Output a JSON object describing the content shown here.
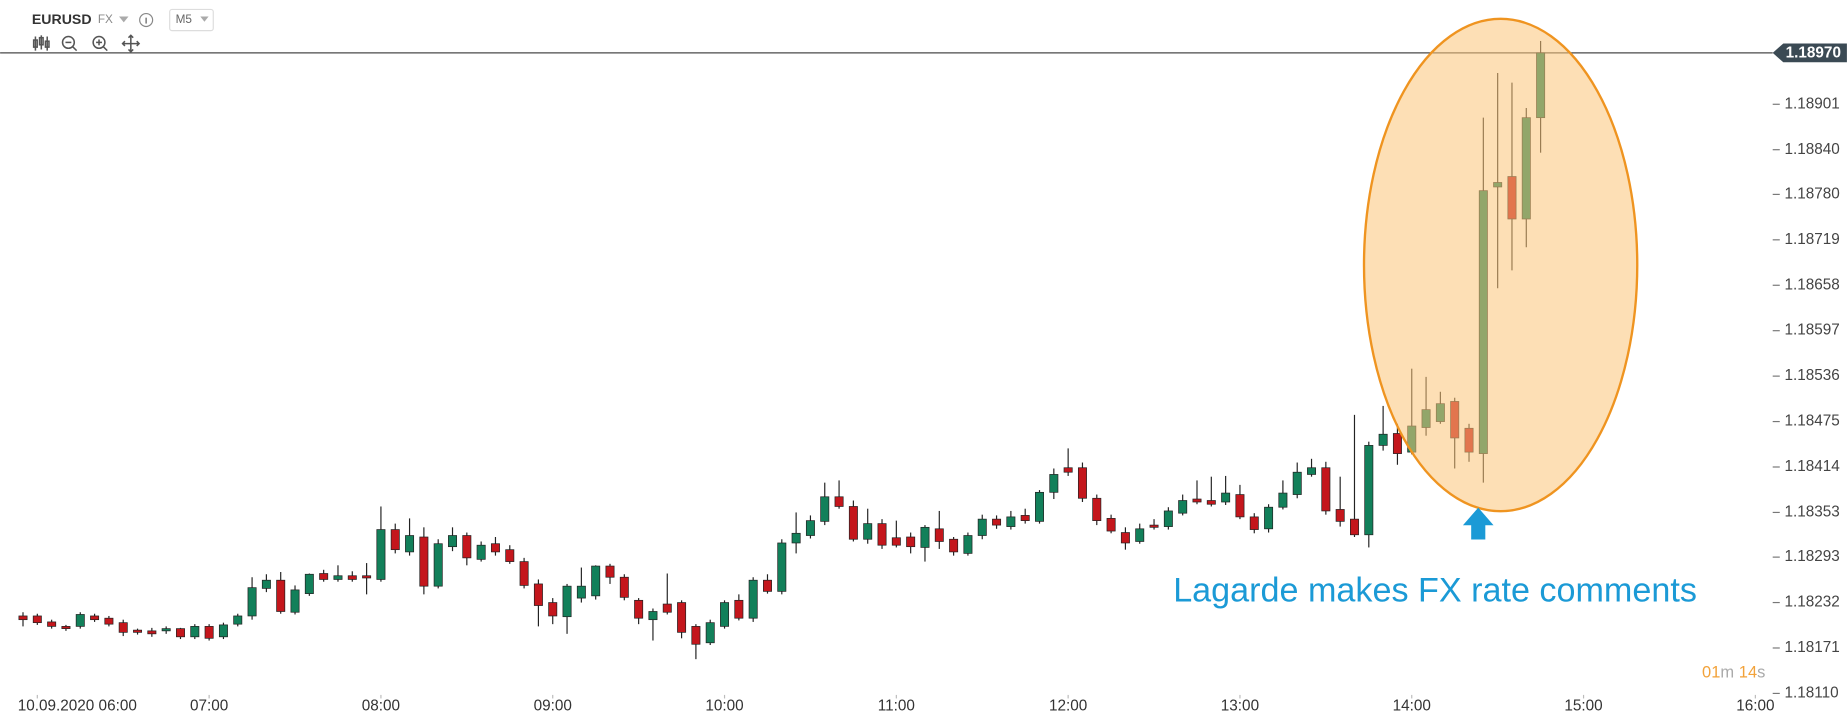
{
  "header": {
    "symbol": "EURUSD",
    "market": "FX",
    "timeframe": "M5"
  },
  "chart_data": {
    "type": "candlestick",
    "annotation": "Lagarde makes FX rate comments",
    "up_color": "#12805a",
    "down_color": "#c4161c",
    "x": [
      355,
      360,
      365,
      370,
      375,
      380,
      385,
      390,
      395,
      400,
      405,
      410,
      415,
      420,
      425,
      430,
      435,
      440,
      445,
      450,
      455,
      460,
      465,
      470,
      475,
      480,
      485,
      490,
      495,
      500,
      505,
      510,
      515,
      520,
      525,
      530,
      535,
      540,
      545,
      550,
      555,
      560,
      565,
      570,
      575,
      580,
      585,
      590,
      595,
      600,
      605,
      610,
      615,
      620,
      625,
      630,
      635,
      640,
      645,
      650,
      655,
      660,
      665,
      670,
      675,
      680,
      685,
      690,
      695,
      700,
      705,
      710,
      715,
      720,
      725,
      730,
      735,
      740,
      745,
      750,
      755,
      760,
      765,
      770,
      775,
      780,
      785,
      790,
      795,
      800,
      805,
      810,
      815,
      820,
      825,
      830,
      835,
      840,
      845,
      850,
      855,
      860,
      865,
      870,
      875,
      880,
      885
    ],
    "open": [
      1.18214,
      1.18214,
      1.18206,
      1.182,
      1.182,
      1.18214,
      1.18211,
      1.18205,
      1.18195,
      1.18194,
      1.18194,
      1.18197,
      1.18186,
      1.182,
      1.18186,
      1.18203,
      1.18214,
      1.18251,
      1.18262,
      1.18219,
      1.18244,
      1.18271,
      1.18263,
      1.18268,
      1.18268,
      1.18263,
      1.1833,
      1.183,
      1.1832,
      1.18254,
      1.18307,
      1.18322,
      1.1829,
      1.18311,
      1.18303,
      1.18287,
      1.18257,
      1.18232,
      1.18213,
      1.18238,
      1.18241,
      1.18281,
      1.18266,
      1.18235,
      1.18209,
      1.1823,
      1.18232,
      1.182,
      1.18178,
      1.182,
      1.18235,
      1.18211,
      1.18262,
      1.18247,
      1.18312,
      1.18322,
      1.18341,
      1.18374,
      1.18361,
      1.18317,
      1.18338,
      1.18319,
      1.1832,
      1.18306,
      1.18331,
      1.18317,
      1.18298,
      1.18322,
      1.18344,
      1.18334,
      1.18349,
      1.18341,
      1.1838,
      1.18413,
      1.18413,
      1.18372,
      1.18345,
      1.18326,
      1.18314,
      1.18336,
      1.18334,
      1.18352,
      1.18371,
      1.18369,
      1.18367,
      1.18377,
      1.18347,
      1.18331,
      1.1836,
      1.18377,
      1.18404,
      1.18413,
      1.18357,
      1.18344,
      1.18323,
      1.18443,
      1.18459,
      1.18434,
      1.18467,
      1.18475,
      1.18502,
      1.18466,
      1.18432,
      1.1879,
      1.18804,
      1.18747,
      1.18883
    ],
    "high": [
      1.18219,
      1.18217,
      1.18209,
      1.18202,
      1.18219,
      1.18217,
      1.18214,
      1.18209,
      1.18197,
      1.18198,
      1.182,
      1.18198,
      1.18203,
      1.18203,
      1.18205,
      1.18217,
      1.18266,
      1.1827,
      1.18273,
      1.18255,
      1.18271,
      1.18276,
      1.18282,
      1.18274,
      1.18285,
      1.18361,
      1.18338,
      1.18345,
      1.18333,
      1.18317,
      1.18333,
      1.18326,
      1.18314,
      1.1832,
      1.18309,
      1.18292,
      1.18263,
      1.18238,
      1.18257,
      1.18279,
      1.18282,
      1.18284,
      1.1827,
      1.18238,
      1.18224,
      1.18271,
      1.18235,
      1.18203,
      1.18209,
      1.18235,
      1.18243,
      1.18266,
      1.1827,
      1.18317,
      1.18353,
      1.18349,
      1.18393,
      1.18396,
      1.18369,
      1.18358,
      1.18344,
      1.18342,
      1.18326,
      1.18336,
      1.18355,
      1.1832,
      1.18326,
      1.1835,
      1.18349,
      1.18355,
      1.18358,
      1.18383,
      1.18412,
      1.18439,
      1.1842,
      1.18377,
      1.1835,
      1.18333,
      1.18338,
      1.18344,
      1.1836,
      1.18377,
      1.18396,
      1.18401,
      1.18402,
      1.1839,
      1.18352,
      1.18364,
      1.18396,
      1.1842,
      1.18425,
      1.18421,
      1.18401,
      1.18484,
      1.18448,
      1.18496,
      1.18472,
      1.18546,
      1.18535,
      1.18515,
      1.18507,
      1.18472,
      1.18883,
      1.18943,
      1.1893,
      1.18896,
      1.18986
    ],
    "low": [
      1.182,
      1.18202,
      1.18197,
      1.18194,
      1.18197,
      1.18206,
      1.182,
      1.18187,
      1.18189,
      1.18186,
      1.1819,
      1.18183,
      1.18183,
      1.18181,
      1.18183,
      1.182,
      1.18209,
      1.18246,
      1.18217,
      1.18216,
      1.18241,
      1.1826,
      1.1826,
      1.1826,
      1.18243,
      1.1826,
      1.18298,
      1.18295,
      1.18243,
      1.18251,
      1.18301,
      1.18282,
      1.18287,
      1.18295,
      1.18284,
      1.18251,
      1.182,
      1.18203,
      1.1819,
      1.18232,
      1.18236,
      1.18257,
      1.18235,
      1.18203,
      1.18181,
      1.18216,
      1.18184,
      1.18156,
      1.18175,
      1.18197,
      1.18208,
      1.18206,
      1.18244,
      1.18243,
      1.18298,
      1.18318,
      1.18336,
      1.18358,
      1.18314,
      1.18311,
      1.18304,
      1.18306,
      1.18298,
      1.18287,
      1.18304,
      1.18295,
      1.18295,
      1.18317,
      1.18331,
      1.1833,
      1.18338,
      1.18338,
      1.18371,
      1.18402,
      1.18367,
      1.18336,
      1.18325,
      1.18303,
      1.18311,
      1.1833,
      1.1833,
      1.18349,
      1.18364,
      1.18361,
      1.18363,
      1.18344,
      1.18325,
      1.18326,
      1.18357,
      1.18372,
      1.18401,
      1.1835,
      1.18334,
      1.1832,
      1.18306,
      1.18436,
      1.18417,
      1.18431,
      1.18456,
      1.18472,
      1.18412,
      1.18421,
      1.18393,
      1.18654,
      1.18678,
      1.18709,
      1.18836
    ],
    "close": [
      1.18209,
      1.18205,
      1.182,
      1.18197,
      1.18216,
      1.18209,
      1.18203,
      1.18192,
      1.18192,
      1.1819,
      1.18197,
      1.18186,
      1.182,
      1.18184,
      1.18202,
      1.18214,
      1.18252,
      1.18262,
      1.1822,
      1.18249,
      1.1827,
      1.18263,
      1.18268,
      1.18263,
      1.18265,
      1.1833,
      1.18303,
      1.18322,
      1.18254,
      1.18311,
      1.18322,
      1.18292,
      1.18309,
      1.183,
      1.18287,
      1.18255,
      1.18228,
      1.18214,
      1.18254,
      1.18254,
      1.18281,
      1.18266,
      1.18239,
      1.18211,
      1.1822,
      1.18219,
      1.18192,
      1.18176,
      1.18205,
      1.18232,
      1.18211,
      1.18262,
      1.18247,
      1.18312,
      1.18325,
      1.18342,
      1.18374,
      1.18361,
      1.18317,
      1.18338,
      1.18309,
      1.18309,
      1.18307,
      1.18333,
      1.18314,
      1.183,
      1.18322,
      1.18344,
      1.18336,
      1.18347,
      1.18342,
      1.1838,
      1.18404,
      1.18407,
      1.18372,
      1.18342,
      1.18328,
      1.18312,
      1.18331,
      1.18333,
      1.18355,
      1.18369,
      1.18367,
      1.18364,
      1.18379,
      1.18347,
      1.1833,
      1.1836,
      1.18379,
      1.18407,
      1.18413,
      1.18355,
      1.18341,
      1.18323,
      1.18443,
      1.18458,
      1.18432,
      1.18469,
      1.18491,
      1.18499,
      1.18453,
      1.18434,
      1.18785,
      1.18796,
      1.18747,
      1.18883,
      1.1897
    ],
    "last_price": {
      "value": 1.1897,
      "label": "1.18970"
    },
    "xlim": [
      347,
      964
    ],
    "ylim": [
      1.18108,
      1.19041
    ],
    "xticks": [
      {
        "value": 360,
        "label": "10.09.2020 06:00"
      },
      {
        "value": 420,
        "label": "07:00"
      },
      {
        "value": 480,
        "label": "08:00"
      },
      {
        "value": 540,
        "label": "09:00"
      },
      {
        "value": 600,
        "label": "10:00"
      },
      {
        "value": 660,
        "label": "11:00"
      },
      {
        "value": 720,
        "label": "12:00"
      },
      {
        "value": 780,
        "label": "13:00"
      },
      {
        "value": 840,
        "label": "14:00"
      },
      {
        "value": 900,
        "label": "15:00"
      },
      {
        "value": 960,
        "label": "16:00"
      }
    ],
    "yticks": [
      {
        "value": 1.1811,
        "label": "1.18110"
      },
      1.18171,
      1.18232,
      1.18293,
      1.18353,
      1.18414,
      1.18475,
      1.18536,
      1.18597,
      1.18658,
      1.18719,
      {
        "value": 1.1878,
        "label": "1.18780"
      },
      {
        "value": 1.1884,
        "label": "1.18840"
      },
      1.18901
    ],
    "countdown": {
      "minutes": "01",
      "m": "m",
      "seconds": "14",
      "s": "s"
    }
  }
}
